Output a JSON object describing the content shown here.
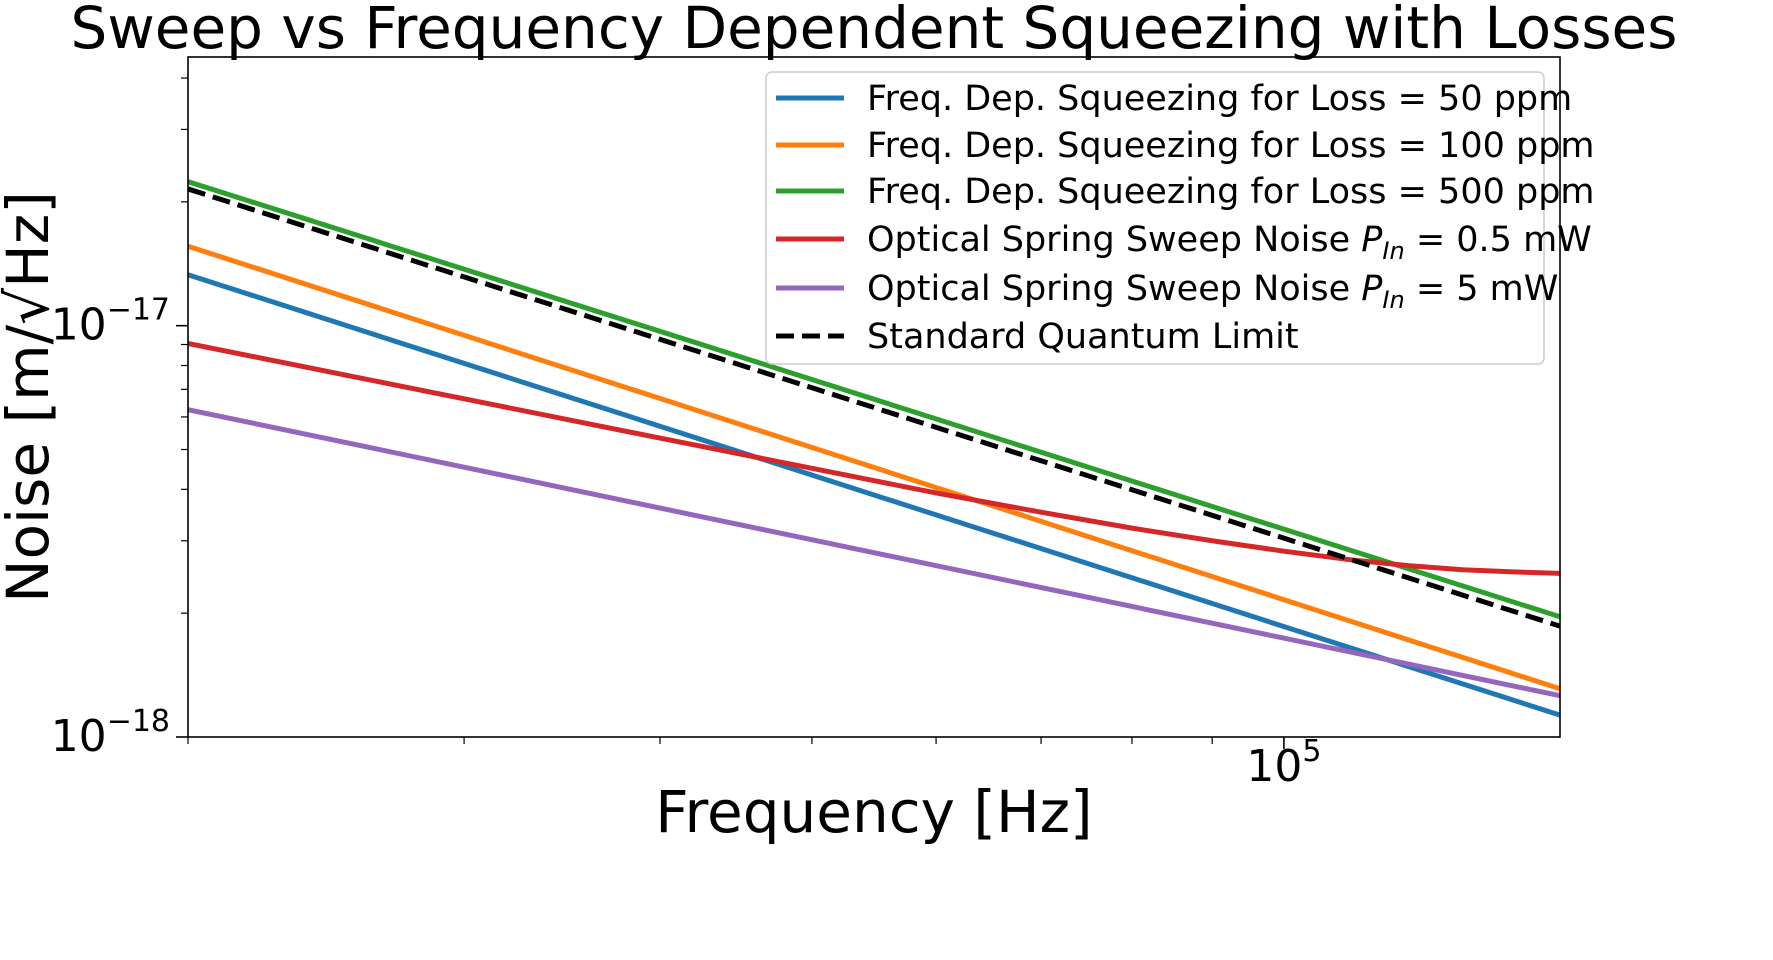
{
  "chart_data": {
    "type": "line",
    "scale": {
      "x": "log",
      "y": "log"
    },
    "title": "Sweep vs Frequency Dependent Squeezing with Losses",
    "xlabel": "Frequency [Hz]",
    "ylabel": "Noise [m/√Hz]",
    "xlim": [
      20000,
      150000
    ],
    "ylim": [
      1e-18,
      4.5e-17
    ],
    "x_ticks": [
      {
        "value": 100000,
        "base": "10",
        "exp": "5"
      }
    ],
    "y_ticks": [
      {
        "value": 1e-18,
        "base": "10",
        "exp": "−18"
      },
      {
        "value": 1e-17,
        "base": "10",
        "exp": "−17"
      }
    ],
    "legend_position": "top-right",
    "series": [
      {
        "key": "fds50",
        "name": "Freq. Dep. Squeezing for Loss = 50 ppm",
        "color": "#1f77b4",
        "dashed": false,
        "x": [
          20000,
          150000
        ],
        "y": [
          1.33e-17,
          1.13e-18
        ]
      },
      {
        "key": "fds100",
        "name": "Freq. Dep. Squeezing for Loss = 100 ppm",
        "color": "#ff7f0e",
        "dashed": false,
        "x": [
          20000,
          150000
        ],
        "y": [
          1.56e-17,
          1.31e-18
        ]
      },
      {
        "key": "fds500",
        "name": "Freq. Dep. Squeezing for Loss = 500 ppm",
        "color": "#2ca02c",
        "dashed": false,
        "x": [
          20000,
          150000
        ],
        "y": [
          2.24e-17,
          1.96e-18
        ]
      },
      {
        "key": "os05",
        "name_prefix": "Optical Spring Sweep Noise ",
        "name_var": "P",
        "name_sub": "In",
        "name_suffix": " = 0.5 mW",
        "color": "#d62728",
        "dashed": false,
        "x": [
          20000,
          30000,
          40000,
          50000,
          60000,
          70000,
          80000,
          90000,
          100000,
          110000,
          120000,
          130000,
          140000,
          150000
        ],
        "y": [
          9.05e-18,
          6.64e-18,
          5.33e-18,
          4.5e-18,
          3.92e-18,
          3.52e-18,
          3.22e-18,
          3e-18,
          2.83e-18,
          2.7e-18,
          2.61e-18,
          2.55e-18,
          2.52e-18,
          2.5e-18
        ]
      },
      {
        "key": "os5",
        "name_prefix": "Optical Spring Sweep Noise ",
        "name_var": "P",
        "name_sub": "In",
        "name_suffix": " = 5 mW",
        "color": "#9467bd",
        "dashed": false,
        "x": [
          20000,
          150000
        ],
        "y": [
          6.25e-18,
          1.26e-18
        ]
      },
      {
        "key": "sql",
        "name": "Standard Quantum Limit",
        "color": "#000000",
        "dashed": true,
        "x": [
          20000,
          150000
        ],
        "y": [
          2.15e-17,
          1.86e-18
        ]
      }
    ]
  }
}
